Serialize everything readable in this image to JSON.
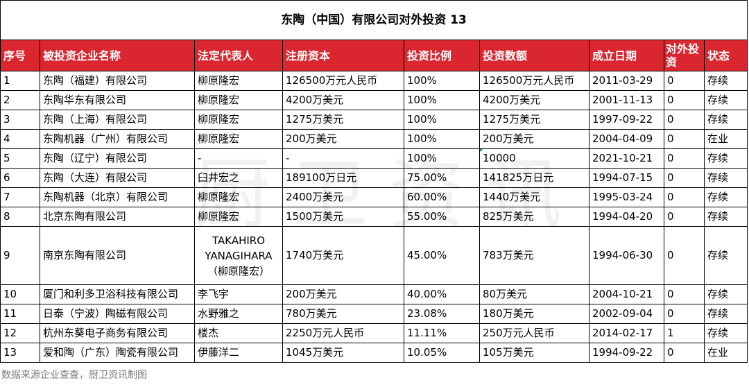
{
  "title": "东陶（中国）有限公司对外投资 13",
  "headers": [
    "序号",
    "被投资企业名称",
    "法定代表人",
    "注册资本",
    "投资比例",
    "投资数额",
    "成立日期",
    "对外投资",
    "状态"
  ],
  "rows": [
    {
      "no": "1",
      "name": "东陶（福建）有限公司",
      "legal_rep": "柳原隆宏",
      "capital": "126500万元人民币",
      "ratio": "100%",
      "amount": "126500万元人民币",
      "date": "2011-03-29",
      "outbound": "0",
      "status": "存续"
    },
    {
      "no": "2",
      "name": "东陶华东有限公司",
      "legal_rep": "柳原隆宏",
      "capital": "4200万美元",
      "ratio": "100%",
      "amount": "4200万美元",
      "date": "2001-11-13",
      "outbound": "0",
      "status": "存续"
    },
    {
      "no": "3",
      "name": "东陶（上海）有限公司",
      "legal_rep": "柳原隆宏",
      "capital": "1275万美元",
      "ratio": "100%",
      "amount": "1275万美元",
      "date": "1997-09-22",
      "outbound": "0",
      "status": "存续"
    },
    {
      "no": "4",
      "name": "东陶机器（广州）有限公司",
      "legal_rep": "柳原隆宏",
      "capital": "200万美元",
      "ratio": "100%",
      "amount": "200万美元",
      "date": "2004-04-09",
      "outbound": "0",
      "status": "在业"
    },
    {
      "no": "5",
      "name": "东陶（辽宁）有限公司",
      "legal_rep": "-",
      "capital": "-",
      "ratio": "100%",
      "amount": "10000",
      "date": "2021-10-21",
      "outbound": "0",
      "status": "存续"
    },
    {
      "no": "6",
      "name": "东陶（大连）有限公司",
      "legal_rep": "臼井宏之",
      "capital": "189100万日元",
      "ratio": "75.00%",
      "amount": "141825万日元",
      "date": "1994-07-15",
      "outbound": "0",
      "status": "存续"
    },
    {
      "no": "7",
      "name": "东陶机器（北京）有限公司",
      "legal_rep": "柳原隆宏",
      "capital": "2400万美元",
      "ratio": "60.00%",
      "amount": "1440万美元",
      "date": "1995-03-24",
      "outbound": "0",
      "status": "存续"
    },
    {
      "no": "8",
      "name": "北京东陶有限公司",
      "legal_rep": "柳原隆宏",
      "capital": "1500万美元",
      "ratio": "55.00%",
      "amount": "825万美元",
      "date": "1994-04-20",
      "outbound": "0",
      "status": "存续"
    },
    {
      "no": "9",
      "name": "南京东陶有限公司",
      "legal_rep_lines": [
        "TAKAHIRO",
        "YANAGIHARA",
        "（柳原隆宏）"
      ],
      "capital": "1740万美元",
      "ratio": "45.00%",
      "amount": "783万美元",
      "date": "1994-06-30",
      "outbound": "0",
      "status": "存续"
    },
    {
      "no": "10",
      "name": "厦门和利多卫浴科技有限公司",
      "legal_rep": "李飞宇",
      "capital": "200万美元",
      "ratio": "40.00%",
      "amount": "80万美元",
      "date": "2004-10-21",
      "outbound": "0",
      "status": "存续"
    },
    {
      "no": "11",
      "name": "日泰（宁波）陶磁有限公司",
      "legal_rep": "水野雅之",
      "capital": "780万美元",
      "ratio": "23.08%",
      "amount": "180万美元",
      "date": "2002-09-04",
      "outbound": "0",
      "status": "存续"
    },
    {
      "no": "12",
      "name": "杭州东葵电子商务有限公司",
      "legal_rep": "楼杰",
      "capital": "2250万元人民币",
      "ratio": "11.11%",
      "amount": "250万元人民币",
      "date": "2014-02-17",
      "outbound": "1",
      "status": "存续"
    },
    {
      "no": "13",
      "name": "爱和陶（广东）陶瓷有限公司",
      "legal_rep": "伊藤洋二",
      "capital": "1045万美元",
      "ratio": "10.05%",
      "amount": "105万美元",
      "date": "1994-09-22",
      "outbound": "0",
      "status": "在业"
    }
  ],
  "source_note": "数据来源企业查查，厨卫资讯制图",
  "watermark": "厨卫资讯",
  "colors": {
    "header_bg": "#d9262f",
    "header_text": "#ffffff",
    "marker": "#1f8a3b"
  }
}
